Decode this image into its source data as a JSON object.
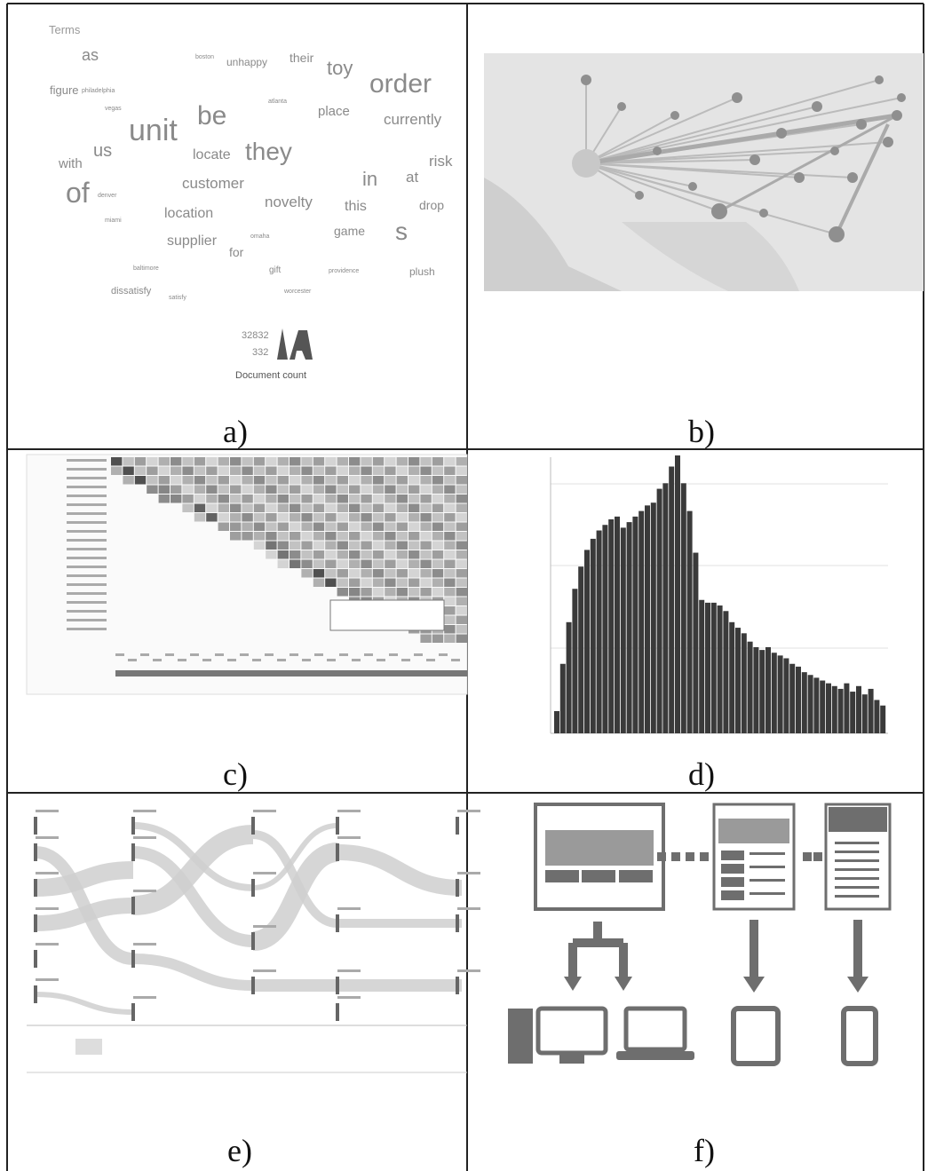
{
  "panels": {
    "a": {
      "label": "a)",
      "title": "Terms",
      "words": [
        "as",
        "unhappy",
        "their",
        "toy",
        "order",
        "figure",
        "philadelphia",
        "vegas",
        "boston",
        "atlanta",
        "unit",
        "be",
        "place",
        "currently",
        "us",
        "they",
        "risk",
        "with",
        "locate",
        "customer",
        "in",
        "at",
        "denver",
        "of",
        "novelty",
        "this",
        "drop",
        "location",
        "miami",
        "game",
        "s",
        "supplier",
        "for",
        "omaha",
        "gift",
        "providence",
        "plush",
        "baltimore",
        "worcester",
        "dissatisfy",
        "satisfy"
      ],
      "legend": {
        "max": "32832",
        "min": "332",
        "caption": "Document count"
      }
    },
    "b": {
      "label": "b)"
    },
    "c": {
      "label": "c)"
    },
    "d": {
      "label": "d)",
      "histogram": {
        "values": [
          8,
          25,
          40,
          52,
          60,
          66,
          70,
          73,
          75,
          77,
          78,
          74,
          76,
          78,
          80,
          82,
          83,
          88,
          90,
          96,
          100,
          90,
          80,
          65,
          48,
          47,
          47,
          46,
          44,
          40,
          38,
          36,
          33,
          31,
          30,
          31,
          29,
          28,
          27,
          25,
          24,
          22,
          21,
          20,
          19,
          18,
          17,
          16,
          18,
          15,
          17,
          14,
          16,
          12,
          10
        ],
        "color": "#3a3a3a"
      }
    },
    "e": {
      "label": "e)"
    },
    "f": {
      "label": "f)"
    }
  }
}
